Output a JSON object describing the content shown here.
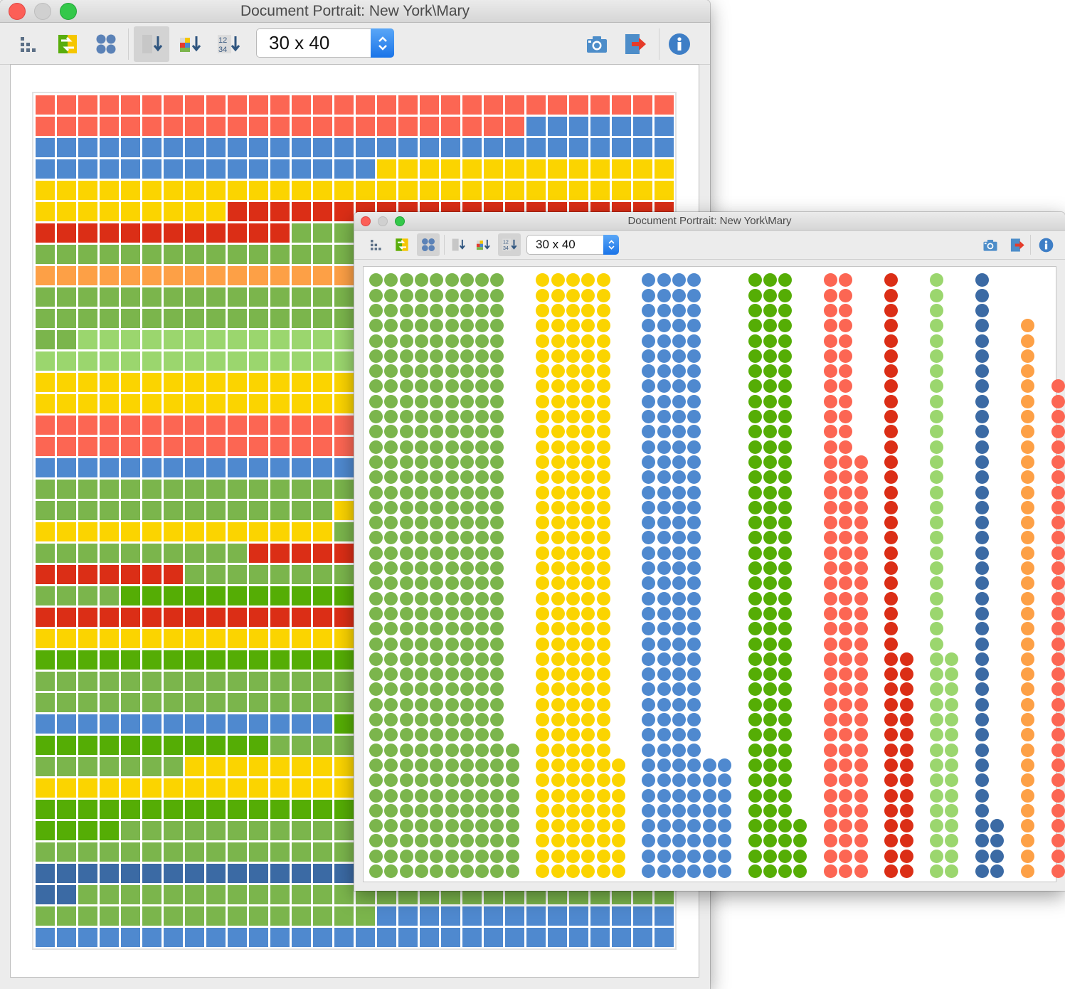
{
  "back_window": {
    "title": "Document Portrait: New York\\Mary",
    "toolbar": {
      "size_value": "30 x 40",
      "icons": [
        "compact-grid-icon",
        "swap-arrows-icon",
        "circles-view-icon",
        "sort-down-icon",
        "sort-by-color-icon",
        "sort-numeric-icon",
        "camera-icon",
        "export-icon",
        "info-icon"
      ]
    },
    "grid": {
      "columns": 30,
      "rows": 40,
      "row_runs": [
        [
          [
            "R",
            30
          ]
        ],
        [
          [
            "R",
            23
          ],
          [
            "B",
            7
          ]
        ],
        [
          [
            "B",
            30
          ]
        ],
        [
          [
            "B",
            16
          ],
          [
            "Y",
            14
          ]
        ],
        [
          [
            "Y",
            30
          ]
        ],
        [
          [
            "Y",
            9
          ],
          [
            "DR",
            21
          ]
        ],
        [
          [
            "DR",
            12
          ],
          [
            "G",
            18
          ]
        ],
        [
          [
            "G",
            30
          ]
        ],
        [
          [
            "O",
            30
          ]
        ],
        [
          [
            "G",
            30
          ]
        ],
        [
          [
            "G",
            30
          ]
        ],
        [
          [
            "G",
            2
          ],
          [
            "LG",
            28
          ]
        ],
        [
          [
            "LG",
            30
          ]
        ],
        [
          [
            "Y",
            30
          ]
        ],
        [
          [
            "Y",
            30
          ]
        ],
        [
          [
            "R",
            30
          ]
        ],
        [
          [
            "R",
            30
          ]
        ],
        [
          [
            "B",
            30
          ]
        ],
        [
          [
            "G",
            30
          ]
        ],
        [
          [
            "G",
            14
          ],
          [
            "Y",
            16
          ]
        ],
        [
          [
            "Y",
            14
          ],
          [
            "G",
            16
          ]
        ],
        [
          [
            "G",
            10
          ],
          [
            "DR",
            20
          ]
        ],
        [
          [
            "DR",
            7
          ],
          [
            "G",
            23
          ]
        ],
        [
          [
            "G",
            4
          ],
          [
            "BG",
            26
          ]
        ],
        [
          [
            "DR",
            30
          ]
        ],
        [
          [
            "Y",
            30
          ]
        ],
        [
          [
            "BG",
            30
          ]
        ],
        [
          [
            "G",
            30
          ]
        ],
        [
          [
            "G",
            30
          ]
        ],
        [
          [
            "B",
            14
          ],
          [
            "BG",
            16
          ]
        ],
        [
          [
            "BG",
            11
          ],
          [
            "G",
            19
          ]
        ],
        [
          [
            "G",
            7
          ],
          [
            "Y",
            23
          ]
        ],
        [
          [
            "Y",
            30
          ]
        ],
        [
          [
            "BG",
            30
          ]
        ],
        [
          [
            "BG",
            4
          ],
          [
            "G",
            26
          ]
        ],
        [
          [
            "G",
            30
          ]
        ],
        [
          [
            "DB",
            30
          ]
        ],
        [
          [
            "DB",
            2
          ],
          [
            "G",
            28
          ]
        ],
        [
          [
            "G",
            16
          ],
          [
            "B",
            14
          ]
        ],
        [
          [
            "B",
            30
          ]
        ]
      ]
    }
  },
  "front_window": {
    "title": "Document Portrait: New York\\Mary",
    "toolbar": {
      "size_value": "30 x 40",
      "icons": [
        "compact-grid-icon",
        "swap-arrows-icon",
        "circles-view-icon",
        "sort-down-icon",
        "sort-by-color-icon",
        "sort-numeric-icon",
        "camera-icon",
        "export-icon",
        "info-icon"
      ]
    },
    "dot_groups": [
      {
        "color": "G",
        "cols": [
          {
            "count": 40
          },
          {
            "count": 40
          },
          {
            "count": 40
          },
          {
            "count": 40
          },
          {
            "count": 40
          },
          {
            "count": 40
          },
          {
            "count": 40
          },
          {
            "count": 40
          },
          {
            "count": 40
          },
          {
            "count": 9
          }
        ]
      },
      {
        "color": "Y",
        "cols": [
          {
            "count": 40
          },
          {
            "count": 40
          },
          {
            "count": 40
          },
          {
            "count": 40
          },
          {
            "count": 40
          },
          {
            "count": 8
          }
        ]
      },
      {
        "color": "B",
        "cols": [
          {
            "count": 40
          },
          {
            "count": 40
          },
          {
            "count": 40
          },
          {
            "count": 40
          },
          {
            "count": 8
          },
          {
            "count": 8
          }
        ]
      },
      {
        "color": "BG",
        "cols": [
          {
            "count": 40
          },
          {
            "count": 40
          },
          {
            "count": 40
          },
          {
            "count": 4
          }
        ]
      },
      {
        "color": "R",
        "cols": [
          {
            "count": 40
          },
          {
            "count": 40
          },
          {
            "count": 28
          }
        ]
      },
      {
        "color": "DR",
        "cols": [
          {
            "count": 40
          },
          {
            "count": 15
          }
        ]
      },
      {
        "color": "LG",
        "cols": [
          {
            "count": 40
          },
          {
            "count": 15
          }
        ]
      },
      {
        "color": "DB",
        "cols": [
          {
            "count": 40
          },
          {
            "count": 4
          }
        ]
      },
      {
        "color": "O",
        "cols": [
          {
            "count": 37
          }
        ]
      },
      {
        "color": "R",
        "cols": [
          {
            "count": 33
          }
        ]
      }
    ]
  },
  "colors": {
    "R": "#fc6653",
    "B": "#4f89cf",
    "Y": "#fbd400",
    "DR": "#db2e16",
    "G": "#7bb54c",
    "O": "#fda046",
    "LG": "#9bd66e",
    "BG": "#55ad05",
    "DB": "#3b6aa4"
  }
}
